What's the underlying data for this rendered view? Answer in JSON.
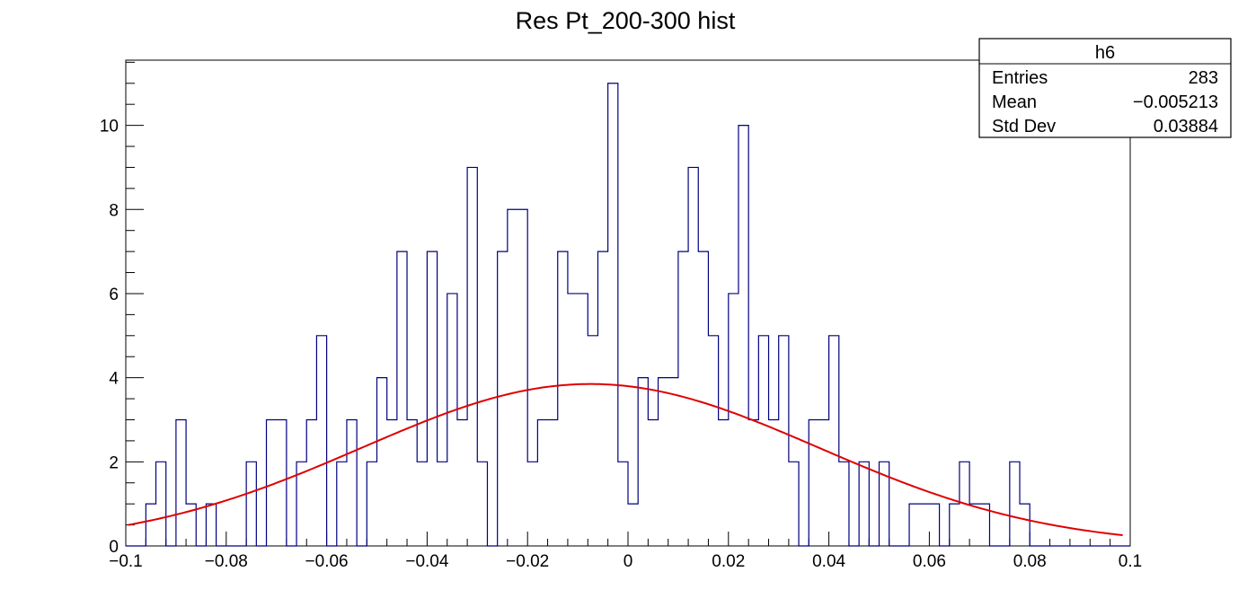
{
  "chart_data": {
    "type": "histogram",
    "title": "Res Pt_200-300 hist",
    "xlabel": "",
    "ylabel": "",
    "xlim": [
      -0.1,
      0.1
    ],
    "ylim": [
      0,
      11.55
    ],
    "bin_width": 0.002,
    "bin_start": -0.1,
    "bin_counts": [
      0,
      0,
      1,
      2,
      0,
      3,
      1,
      0,
      1,
      0,
      0,
      0,
      2,
      0,
      3,
      3,
      0,
      2,
      3,
      5,
      0,
      2,
      3,
      0,
      2,
      4,
      3,
      7,
      3,
      2,
      7,
      2,
      6,
      3,
      9,
      2,
      0,
      7,
      8,
      8,
      2,
      3,
      3,
      7,
      6,
      6,
      5,
      7,
      11,
      2,
      1,
      4,
      3,
      4,
      4,
      7,
      9,
      7,
      5,
      3,
      6,
      10,
      3,
      5,
      3,
      5,
      2,
      0,
      3,
      3,
      5,
      2,
      0,
      2,
      0,
      2,
      0,
      0,
      1,
      1,
      1,
      0,
      1,
      2,
      1,
      1,
      0,
      0,
      2,
      1,
      0,
      0,
      0,
      0,
      0,
      0,
      0,
      0,
      0,
      0
    ],
    "x_ticks": [
      {
        "value": -0.1,
        "label": "−0.1"
      },
      {
        "value": -0.08,
        "label": "−0.08"
      },
      {
        "value": -0.06,
        "label": "−0.06"
      },
      {
        "value": -0.04,
        "label": "−0.04"
      },
      {
        "value": -0.02,
        "label": "−0.02"
      },
      {
        "value": 0,
        "label": "0"
      },
      {
        "value": 0.02,
        "label": "0.02"
      },
      {
        "value": 0.04,
        "label": "0.04"
      },
      {
        "value": 0.06,
        "label": "0.06"
      },
      {
        "value": 0.08,
        "label": "0.08"
      },
      {
        "value": 0.1,
        "label": "0.1"
      }
    ],
    "y_ticks": [
      {
        "value": 0,
        "label": "0"
      },
      {
        "value": 2,
        "label": "2"
      },
      {
        "value": 4,
        "label": "4"
      },
      {
        "value": 6,
        "label": "6"
      },
      {
        "value": 8,
        "label": "8"
      },
      {
        "value": 10,
        "label": "10"
      }
    ],
    "fit": {
      "type": "gaussian",
      "constant": 3.85,
      "mean": -0.0075,
      "sigma": 0.0455,
      "x_range": [
        -0.0995,
        0.0985
      ]
    },
    "colors": {
      "histogram_line": "#000080",
      "fit_line": "#e00000",
      "axis": "#000000"
    },
    "stats_box": {
      "name": "h6",
      "rows": [
        {
          "label": "Entries",
          "value": "283"
        },
        {
          "label": "Mean",
          "value": "−0.005213"
        },
        {
          "label": "Std Dev",
          "value": "0.03884"
        }
      ]
    }
  }
}
